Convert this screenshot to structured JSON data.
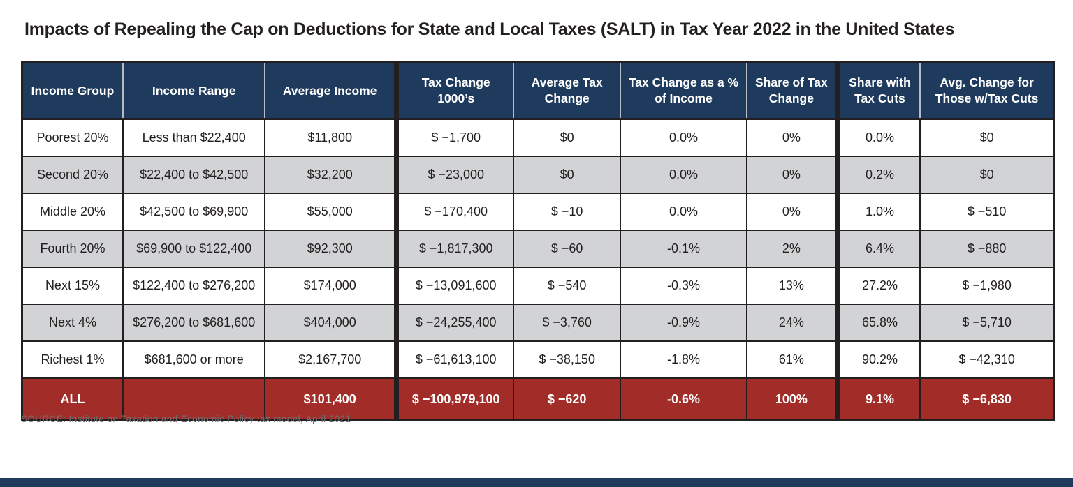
{
  "title": "Impacts of Repealing the Cap on Deductions for State and Local Taxes (SALT) in Tax Year 2022 in the United States",
  "source": "SOURCE: Institute on Taxation and Economic Policy tax model, April 2021",
  "colors": {
    "header_bg": "#1e3a5c",
    "total_row_bg": "#a22d28",
    "alt_row_bg": "#d2d3d5",
    "border": "#231f20",
    "source_text": "#6e6f72"
  },
  "chart_data": {
    "type": "table",
    "title": "Impacts of Repealing the Cap on Deductions for State and Local Taxes (SALT) in Tax Year 2022 in the United States",
    "columns": [
      "Income Group",
      "Income Range",
      "Average Income",
      "Tax Change 1000’s",
      "Average Tax Change",
      "Tax Change as a % of Income",
      "Share of Tax Change",
      "Share with Tax Cuts",
      "Avg. Change for Those w/Tax Cuts"
    ],
    "rows": [
      [
        "Poorest 20%",
        "Less than $22,400",
        "$11,800",
        "$ −1,700",
        "$0",
        "0.0%",
        "0%",
        "0.0%",
        "$0"
      ],
      [
        "Second 20%",
        "$22,400 to $42,500",
        "$32,200",
        "$ −23,000",
        "$0",
        "0.0%",
        "0%",
        "0.2%",
        "$0"
      ],
      [
        "Middle 20%",
        "$42,500 to $69,900",
        "$55,000",
        "$ −170,400",
        "$ −10",
        "0.0%",
        "0%",
        "1.0%",
        "$ −510"
      ],
      [
        "Fourth 20%",
        "$69,900 to $122,400",
        "$92,300",
        "$ −1,817,300",
        "$ −60",
        "-0.1%",
        "2%",
        "6.4%",
        "$ −880"
      ],
      [
        "Next 15%",
        "$122,400 to $276,200",
        "$174,000",
        "$ −13,091,600",
        "$ −540",
        "-0.3%",
        "13%",
        "27.2%",
        "$ −1,980"
      ],
      [
        "Next 4%",
        "$276,200 to $681,600",
        "$404,000",
        "$ −24,255,400",
        "$ −3,760",
        "-0.9%",
        "24%",
        "65.8%",
        "$ −5,710"
      ],
      [
        "Richest 1%",
        "$681,600 or more",
        "$2,167,700",
        "$ −61,613,100",
        "$ −38,150",
        "-1.8%",
        "61%",
        "90.2%",
        "$ −42,310"
      ]
    ],
    "total_row": [
      "ALL",
      "",
      "$101,400",
      "$ −100,979,100",
      "$ −620",
      "-0.6%",
      "100%",
      "9.1%",
      "$ −6,830"
    ]
  }
}
